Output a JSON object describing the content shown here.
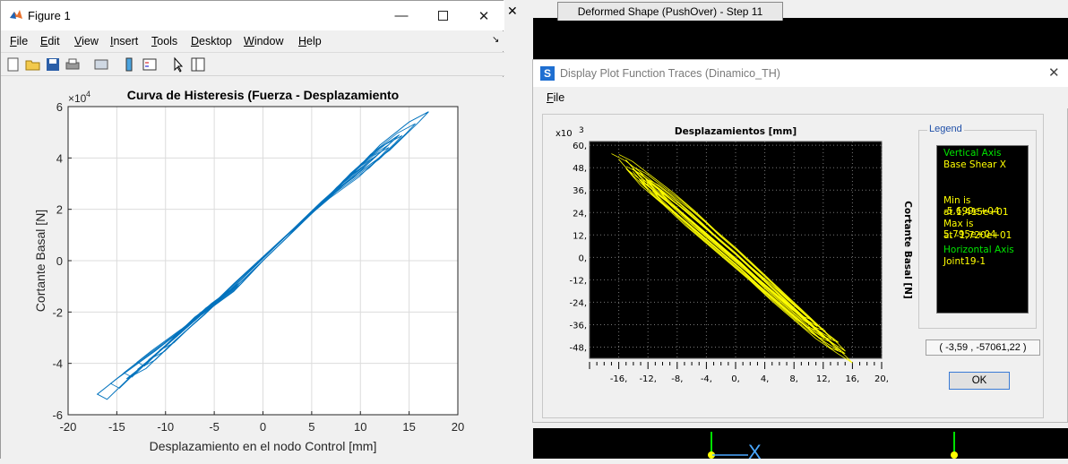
{
  "figure": {
    "title": "Figure 1",
    "menu": [
      "File",
      "Edit",
      "View",
      "Insert",
      "Tools",
      "Desktop",
      "Window",
      "Help"
    ],
    "menu_ul": [
      "F",
      "E",
      "V",
      "I",
      "T",
      "D",
      "W",
      "H"
    ],
    "toolbar_icons": [
      "new-figure-icon",
      "open-icon",
      "save-icon",
      "print-icon",
      "print-preview-icon",
      "colorbar-icon",
      "legend-icon",
      "pointer-icon",
      "property-inspector-icon"
    ]
  },
  "left_chart": {
    "chart_data": {
      "type": "line",
      "title": "Curva de Histeresis (Fuerza - Desplazamiento",
      "xlabel": "Desplazamiento en el nodo Control [mm]",
      "ylabel": "Cortante Basal [N]",
      "exponent_label": "×10",
      "exponent_power": "4",
      "xlim": [
        -20,
        20
      ],
      "ylim": [
        -6,
        6
      ],
      "xticks": [
        "-20",
        "-15",
        "-10",
        "-5",
        "0",
        "5",
        "10",
        "15",
        "20"
      ],
      "yticks": [
        "-6",
        "-4",
        "-2",
        "0",
        "2",
        "4",
        "6"
      ],
      "grid": true,
      "color": "#0072BD",
      "series": [
        {
          "x": [
            0,
            -3,
            -7,
            -10,
            -13,
            -16,
            -17,
            -15,
            -11,
            -7,
            -3,
            0,
            3,
            6,
            9,
            12,
            15,
            17,
            16,
            13,
            9,
            5,
            1,
            -3,
            -6,
            -9,
            -12,
            -14,
            -12,
            -9,
            -6,
            -3,
            0,
            3,
            6,
            9,
            12,
            14,
            12,
            9,
            6,
            3,
            0
          ],
          "y": [
            0,
            -1.1,
            -2.2,
            -3.3,
            -4.3,
            -5.4,
            -5.2,
            -4.6,
            -3.5,
            -2.3,
            -1.2,
            0,
            1.1,
            2.3,
            3.3,
            4.5,
            5.4,
            5.8,
            5.4,
            4.3,
            3.2,
            1.9,
            0.5,
            -0.9,
            -2.0,
            -3.0,
            -4.0,
            -4.6,
            -4.2,
            -3.1,
            -2.1,
            -1.0,
            0.1,
            1.2,
            2.3,
            3.3,
            4.2,
            4.9,
            4.4,
            3.4,
            2.2,
            1.1,
            0
          ]
        }
      ]
    }
  },
  "right": {
    "tab_label": "Deformed Shape (PushOver) - Step 11",
    "dialog_title": "Display Plot Function Traces  (Dinamico_TH)",
    "dialog_menu": "File",
    "dialog_menu_ul": "F",
    "legend_title": "Legend",
    "legend_lines": [
      {
        "text": "Vertical Axis",
        "color": "#00e600"
      },
      {
        "text": "Base Shear X",
        "color": "#ffff00"
      },
      {
        "text": "Min is -5,699e+04",
        "color": "#ffff00"
      },
      {
        "text": "at 1,415e+01",
        "color": "#ffff00"
      },
      {
        "text": "Max is 5,795e+04",
        "color": "#ffff00"
      },
      {
        "text": "at -1,720e+01",
        "color": "#ffff00"
      },
      {
        "text": "Horizontal Axis",
        "color": "#00e600"
      },
      {
        "text": "Joint19-1",
        "color": "#ffff00"
      }
    ],
    "coord_readout": "( -3,59 , -57061,22 )",
    "ok_label": "OK",
    "chart_data": {
      "type": "line",
      "title": "Desplazamientos [mm]",
      "ylabel": "Cortante Basal [N]",
      "exponent_label": "x10",
      "exponent_power": "3",
      "xlim": [
        -20,
        20
      ],
      "ylim": [
        -54,
        62
      ],
      "xticks": [
        "-16,",
        "-12,",
        "-8,",
        "-4,",
        "0,",
        "4,",
        "8,",
        "12,",
        "16,",
        "20,"
      ],
      "yticks": [
        "60,",
        "48,",
        "36,",
        "24,",
        "12,",
        "0,",
        "-12,",
        "-24,",
        "-36,",
        "-48,"
      ],
      "grid": true,
      "background": "#000000",
      "color": "#ffff00",
      "series": [
        {
          "x": [
            -17,
            -15,
            -12,
            -9,
            -6,
            -3,
            0,
            3,
            6,
            9,
            12,
            15,
            16,
            14,
            11,
            8,
            5,
            2,
            -1,
            -4,
            -7,
            -10,
            -13,
            -15,
            -14,
            -11,
            -8,
            -5,
            -2,
            1,
            4,
            7,
            10,
            13,
            15,
            13,
            10,
            7,
            4,
            1,
            -2,
            -5,
            -8,
            -11,
            -14,
            -16
          ],
          "y": [
            57,
            53,
            44,
            35,
            25,
            14,
            4,
            -7,
            -18,
            -29,
            -40,
            -51,
            -55,
            -50,
            -42,
            -32,
            -22,
            -11,
            -1,
            9,
            19,
            30,
            40,
            49,
            46,
            37,
            27,
            17,
            7,
            -3,
            -13,
            -23,
            -34,
            -44,
            -50,
            -47,
            -37,
            -27,
            -17,
            -6,
            4,
            14,
            24,
            34,
            45,
            54
          ]
        }
      ]
    }
  }
}
